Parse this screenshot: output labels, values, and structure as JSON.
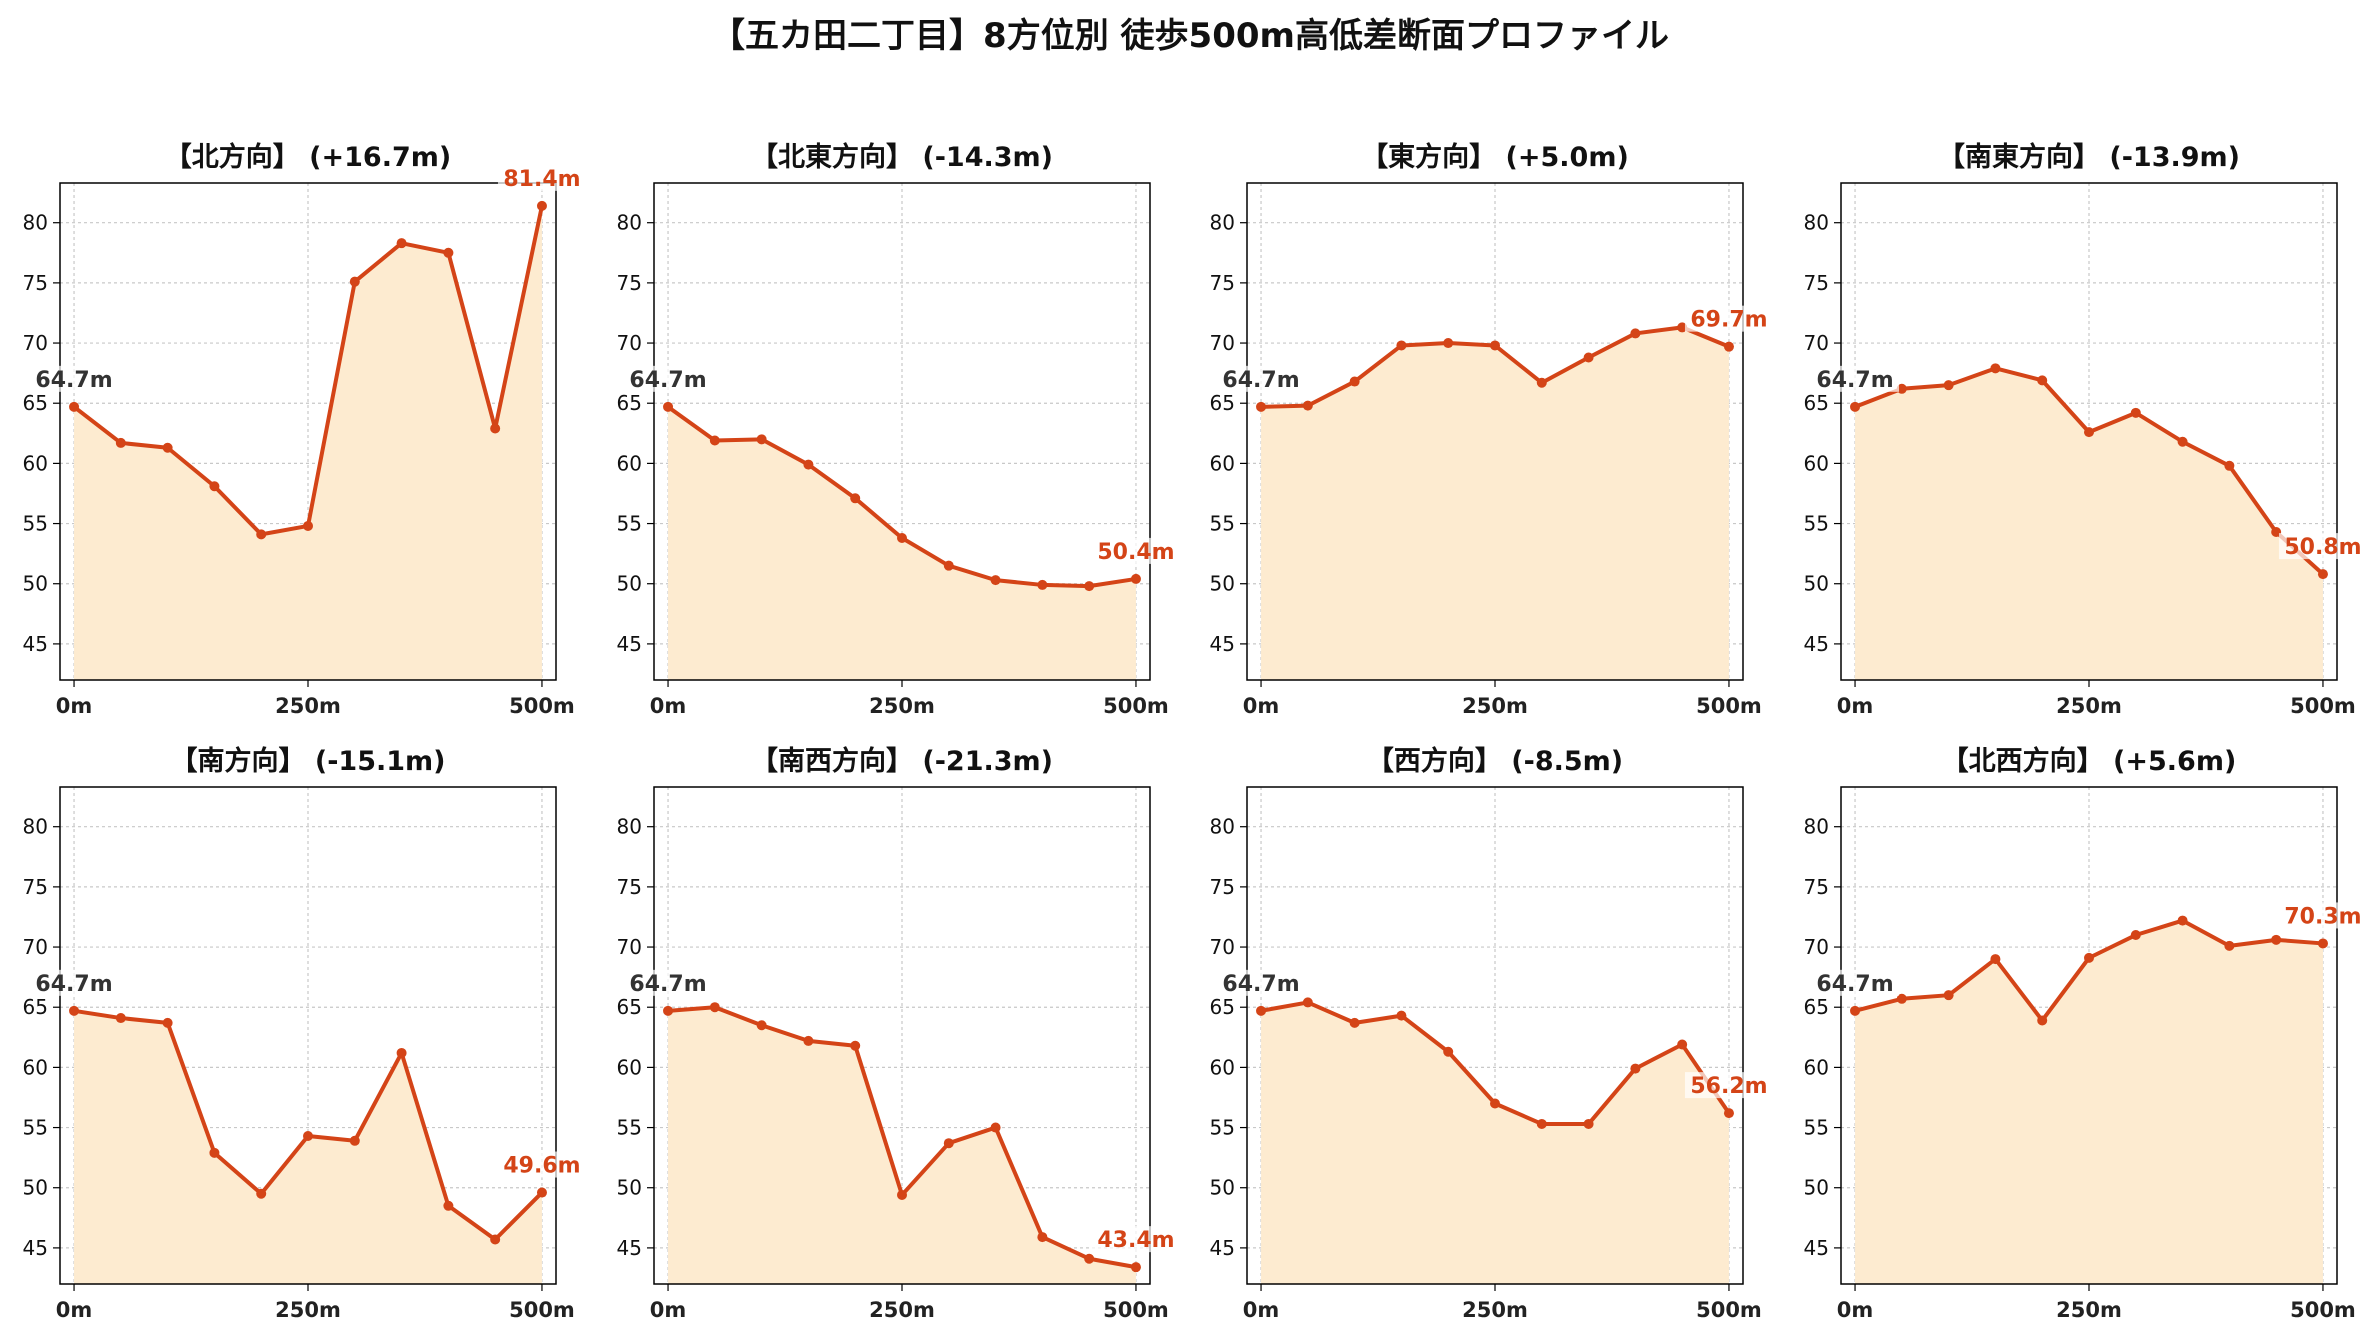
{
  "title": "【五カ田二丁目】8方位別 徒歩500m高低差断面プロファイル",
  "colors": {
    "line": "#d44417",
    "fill": "#fdebd0",
    "start_label": "#333333",
    "end_label": "#d44417",
    "grid": "#c8c8c8"
  },
  "chart_data": [
    {
      "type": "area",
      "title": "【北方向】 (+16.7m)",
      "x": [
        0,
        50,
        100,
        150,
        200,
        250,
        300,
        350,
        400,
        450,
        500
      ],
      "values": [
        64.7,
        61.7,
        61.3,
        58.1,
        54.1,
        54.8,
        75.1,
        78.3,
        77.5,
        62.9,
        81.4
      ],
      "start_label": "64.7m",
      "end_label": "81.4m",
      "xticks": [
        "0m",
        "250m",
        "500m"
      ],
      "yticks": [
        45,
        50,
        55,
        60,
        65,
        70,
        75,
        80
      ],
      "xlim": [
        -15,
        515
      ],
      "ylim": [
        42,
        83.3
      ],
      "grid": true
    },
    {
      "type": "area",
      "title": "【北東方向】 (-14.3m)",
      "x": [
        0,
        50,
        100,
        150,
        200,
        250,
        300,
        350,
        400,
        450,
        500
      ],
      "values": [
        64.7,
        61.9,
        62.0,
        59.9,
        57.1,
        53.8,
        51.5,
        50.3,
        49.9,
        49.8,
        50.4
      ],
      "start_label": "64.7m",
      "end_label": "50.4m",
      "xticks": [
        "0m",
        "250m",
        "500m"
      ],
      "yticks": [
        45,
        50,
        55,
        60,
        65,
        70,
        75,
        80
      ],
      "xlim": [
        -15,
        515
      ],
      "ylim": [
        42,
        83.3
      ],
      "grid": true
    },
    {
      "type": "area",
      "title": "【東方向】 (+5.0m)",
      "x": [
        0,
        50,
        100,
        150,
        200,
        250,
        300,
        350,
        400,
        450,
        500
      ],
      "values": [
        64.7,
        64.8,
        66.8,
        69.8,
        70.0,
        69.8,
        66.7,
        68.8,
        70.8,
        71.3,
        69.7
      ],
      "start_label": "64.7m",
      "end_label": "69.7m",
      "xticks": [
        "0m",
        "250m",
        "500m"
      ],
      "yticks": [
        45,
        50,
        55,
        60,
        65,
        70,
        75,
        80
      ],
      "xlim": [
        -15,
        515
      ],
      "ylim": [
        42,
        83.3
      ],
      "grid": true
    },
    {
      "type": "area",
      "title": "【南東方向】 (-13.9m)",
      "x": [
        0,
        50,
        100,
        150,
        200,
        250,
        300,
        350,
        400,
        450,
        500
      ],
      "values": [
        64.7,
        66.2,
        66.5,
        67.9,
        66.9,
        62.6,
        64.2,
        61.8,
        59.8,
        54.3,
        50.8
      ],
      "start_label": "64.7m",
      "end_label": "50.8m",
      "xticks": [
        "0m",
        "250m",
        "500m"
      ],
      "yticks": [
        45,
        50,
        55,
        60,
        65,
        70,
        75,
        80
      ],
      "xlim": [
        -15,
        515
      ],
      "ylim": [
        42,
        83.3
      ],
      "grid": true
    },
    {
      "type": "area",
      "title": "【南方向】 (-15.1m)",
      "x": [
        0,
        50,
        100,
        150,
        200,
        250,
        300,
        350,
        400,
        450,
        500
      ],
      "values": [
        64.7,
        64.1,
        63.7,
        52.9,
        49.5,
        54.3,
        53.9,
        61.2,
        48.5,
        45.7,
        49.6
      ],
      "start_label": "64.7m",
      "end_label": "49.6m",
      "xticks": [
        "0m",
        "250m",
        "500m"
      ],
      "yticks": [
        45,
        50,
        55,
        60,
        65,
        70,
        75,
        80
      ],
      "xlim": [
        -15,
        515
      ],
      "ylim": [
        42,
        83.3
      ],
      "grid": true
    },
    {
      "type": "area",
      "title": "【南西方向】 (-21.3m)",
      "x": [
        0,
        50,
        100,
        150,
        200,
        250,
        300,
        350,
        400,
        450,
        500
      ],
      "values": [
        64.7,
        65.0,
        63.5,
        62.2,
        61.8,
        49.4,
        53.7,
        55.0,
        45.9,
        44.1,
        43.4
      ],
      "start_label": "64.7m",
      "end_label": "43.4m",
      "xticks": [
        "0m",
        "250m",
        "500m"
      ],
      "yticks": [
        45,
        50,
        55,
        60,
        65,
        70,
        75,
        80
      ],
      "xlim": [
        -15,
        515
      ],
      "ylim": [
        42,
        83.3
      ],
      "grid": true
    },
    {
      "type": "area",
      "title": "【西方向】 (-8.5m)",
      "x": [
        0,
        50,
        100,
        150,
        200,
        250,
        300,
        350,
        400,
        450,
        500
      ],
      "values": [
        64.7,
        65.4,
        63.7,
        64.3,
        61.3,
        57.0,
        55.3,
        55.3,
        59.9,
        61.9,
        56.2
      ],
      "start_label": "64.7m",
      "end_label": "56.2m",
      "xticks": [
        "0m",
        "250m",
        "500m"
      ],
      "yticks": [
        45,
        50,
        55,
        60,
        65,
        70,
        75,
        80
      ],
      "xlim": [
        -15,
        515
      ],
      "ylim": [
        42,
        83.3
      ],
      "grid": true
    },
    {
      "type": "area",
      "title": "【北西方向】 (+5.6m)",
      "x": [
        0,
        50,
        100,
        150,
        200,
        250,
        300,
        350,
        400,
        450,
        500
      ],
      "values": [
        64.7,
        65.7,
        66.0,
        69.0,
        63.9,
        69.1,
        71.0,
        72.2,
        70.1,
        70.6,
        70.3
      ],
      "start_label": "64.7m",
      "end_label": "70.3m",
      "xticks": [
        "0m",
        "250m",
        "500m"
      ],
      "yticks": [
        45,
        50,
        55,
        60,
        65,
        70,
        75,
        80
      ],
      "xlim": [
        -15,
        515
      ],
      "ylim": [
        42,
        83.3
      ],
      "grid": true
    }
  ]
}
